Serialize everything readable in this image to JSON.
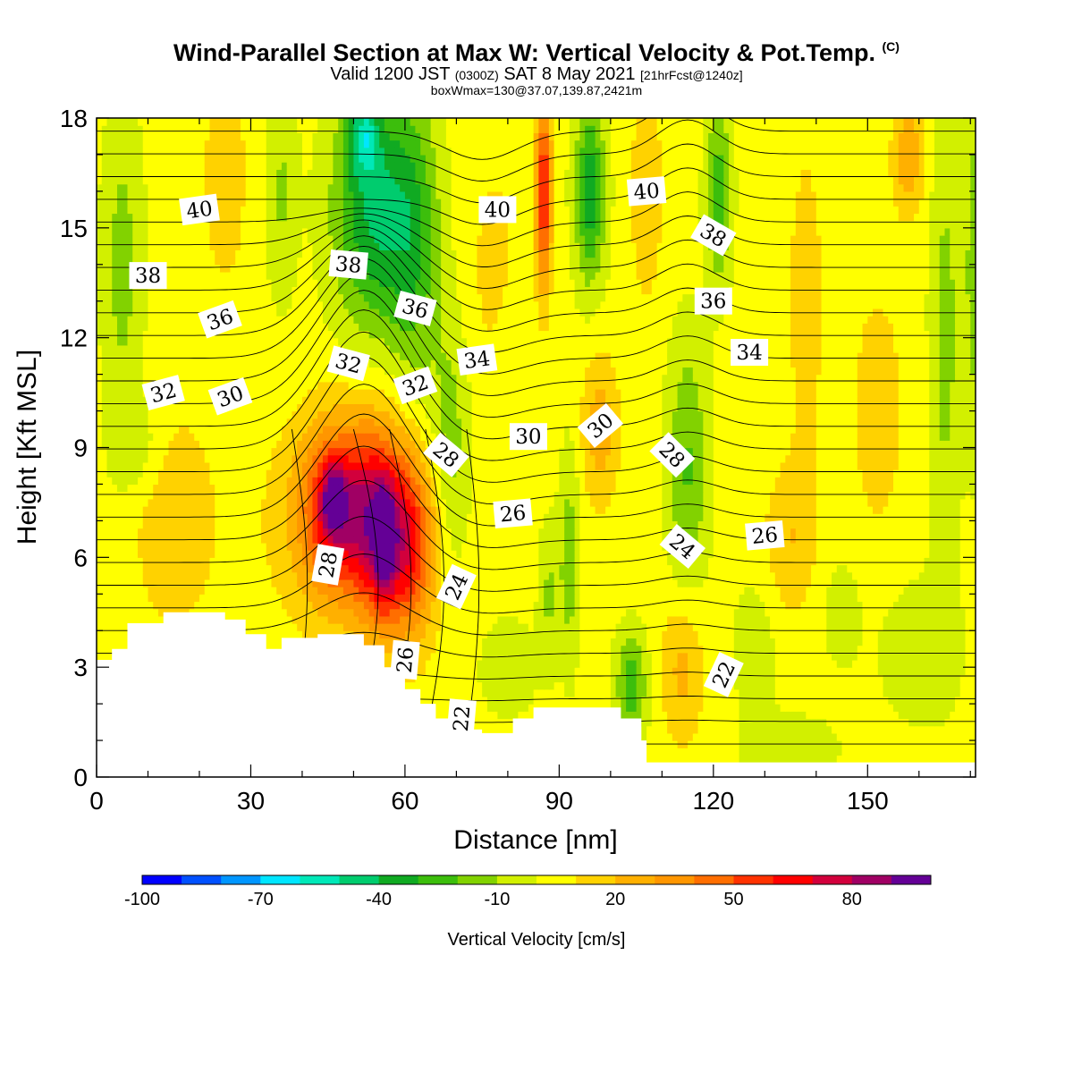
{
  "header": {
    "title": "Wind-Parallel Section at Max W: Vertical Velocity & Pot.Temp.",
    "title_mark": "(C)",
    "valid_prefix": "Valid 1200 JST",
    "valid_utc": "(0300Z)",
    "valid_date": "SAT 8 May 2021",
    "forecast": "[21hrFcst@1240z]",
    "box_info": "boxWmax=130@37.07,139.87,2421m"
  },
  "chart_data": {
    "type": "heatmap",
    "xlabel": "Distance [nm]",
    "ylabel": "Height [Kft MSL]",
    "xlim": [
      0,
      171
    ],
    "ylim": [
      0,
      18
    ],
    "x_ticks": [
      0,
      30,
      60,
      90,
      120,
      150
    ],
    "y_ticks": [
      0,
      3,
      6,
      9,
      12,
      15,
      18
    ],
    "colorbar": {
      "label": "Vertical Velocity [cm/s]",
      "tick_labels": [
        "-100",
        "-70",
        "-40",
        "-10",
        "20",
        "50",
        "80"
      ],
      "tick_values": [
        -100,
        -70,
        -40,
        -10,
        20,
        50,
        80
      ],
      "levels": [
        -100,
        -90,
        -80,
        -70,
        -60,
        -50,
        -40,
        -30,
        -20,
        -10,
        0,
        10,
        20,
        30,
        40,
        50,
        60,
        70,
        80,
        90,
        100
      ],
      "colors": [
        "#0000ff",
        "#0050ff",
        "#0096ff",
        "#00e6ff",
        "#00e8b8",
        "#00cc6e",
        "#10aa22",
        "#3cbe0c",
        "#82d200",
        "#d2f000",
        "#ffff00",
        "#ffd200",
        "#ffb000",
        "#ff9600",
        "#ff6e00",
        "#ff3200",
        "#ff0000",
        "#d2003c",
        "#a00064",
        "#640096"
      ]
    },
    "terrain_kft": [
      [
        0,
        3.2
      ],
      [
        3,
        3.5
      ],
      [
        6,
        4.2
      ],
      [
        13,
        4.5
      ],
      [
        25,
        4.3
      ],
      [
        29,
        3.9
      ],
      [
        33,
        3.5
      ],
      [
        36,
        3.8
      ],
      [
        43,
        3.9
      ],
      [
        52,
        3.6
      ],
      [
        56,
        3.0
      ],
      [
        60,
        2.4
      ],
      [
        63,
        2.0
      ],
      [
        66,
        1.6
      ],
      [
        70,
        1.3
      ],
      [
        75,
        1.2
      ],
      [
        81,
        1.6
      ],
      [
        85,
        1.9
      ],
      [
        98,
        1.9
      ],
      [
        102,
        1.6
      ],
      [
        106,
        1.0
      ],
      [
        107,
        0.4
      ],
      [
        171,
        0.4
      ]
    ],
    "vertical_velocity_cells": [
      {
        "x": 47,
        "y": 7.3,
        "sx": 7,
        "sy": 2.2,
        "w": 55
      },
      {
        "x": 55,
        "y": 6.8,
        "sx": 5,
        "sy": 2.6,
        "w": 50
      },
      {
        "x": 61,
        "y": 6.3,
        "sx": 5,
        "sy": 2.4,
        "w": 45
      },
      {
        "x": 46,
        "y": 7.6,
        "sx": 2.5,
        "sy": 1.0,
        "w": 35
      },
      {
        "x": 56,
        "y": 6.4,
        "sx": 1.8,
        "sy": 1.4,
        "w": 40
      },
      {
        "x": 50,
        "y": 7.0,
        "sx": 16,
        "sy": 3.0,
        "w": 18
      },
      {
        "x": 15,
        "y": 7.0,
        "sx": 8,
        "sy": 3.0,
        "w": 14
      },
      {
        "x": 54,
        "y": 15.5,
        "sx": 8,
        "sy": 3.3,
        "w": -45
      },
      {
        "x": 52,
        "y": 17.5,
        "sx": 3,
        "sy": 1.0,
        "w": -35
      },
      {
        "x": 62,
        "y": 14.5,
        "sx": 5,
        "sy": 4.0,
        "w": -25
      },
      {
        "x": 69,
        "y": 9.0,
        "sx": 4,
        "sy": 3.5,
        "w": -20
      },
      {
        "x": 96,
        "y": 16.0,
        "sx": 3,
        "sy": 2.5,
        "w": -40
      },
      {
        "x": 87,
        "y": 16.0,
        "sx": 1.5,
        "sy": 2.5,
        "w": 60
      },
      {
        "x": 92,
        "y": 6.0,
        "sx": 2,
        "sy": 3.0,
        "w": -20
      },
      {
        "x": 98,
        "y": 9.5,
        "sx": 3.5,
        "sy": 2.0,
        "w": 22
      },
      {
        "x": 104,
        "y": 2.5,
        "sx": 3,
        "sy": 1.5,
        "w": -30
      },
      {
        "x": 115,
        "y": 8.5,
        "sx": 4,
        "sy": 3.5,
        "w": -25
      },
      {
        "x": 121,
        "y": 16.0,
        "sx": 2.5,
        "sy": 2.5,
        "w": -30
      },
      {
        "x": 114,
        "y": 3.0,
        "sx": 4,
        "sy": 2.0,
        "w": 20
      },
      {
        "x": 135,
        "y": 6.5,
        "sx": 5,
        "sy": 2.0,
        "w": 15
      },
      {
        "x": 5,
        "y": 14.0,
        "sx": 4,
        "sy": 4.5,
        "w": -18
      },
      {
        "x": 8,
        "y": 9.0,
        "sx": 5,
        "sy": 1.3,
        "w": -12
      },
      {
        "x": 25,
        "y": 16.5,
        "sx": 4,
        "sy": 3.0,
        "w": 14
      },
      {
        "x": 36,
        "y": 16.0,
        "sx": 3,
        "sy": 3.0,
        "w": -15
      },
      {
        "x": 80,
        "y": 11.5,
        "sx": 5,
        "sy": 3.0,
        "w": -8
      },
      {
        "x": 107,
        "y": 16.0,
        "sx": 3,
        "sy": 3.0,
        "w": 15
      },
      {
        "x": 138,
        "y": 13.0,
        "sx": 4,
        "sy": 5.0,
        "w": 10
      },
      {
        "x": 152,
        "y": 10.0,
        "sx": 6,
        "sy": 4.0,
        "w": 10
      },
      {
        "x": 165,
        "y": 12.0,
        "sx": 3,
        "sy": 6.0,
        "w": -18
      },
      {
        "x": 172,
        "y": 14.0,
        "sx": 3,
        "sy": 5.0,
        "w": -25
      },
      {
        "x": 158,
        "y": 17.0,
        "sx": 3,
        "sy": 1.5,
        "w": 25
      },
      {
        "x": 160,
        "y": 3.5,
        "sx": 8,
        "sy": 2.0,
        "w": -12
      },
      {
        "x": 145,
        "y": 4.5,
        "sx": 4,
        "sy": 1.5,
        "w": -10
      },
      {
        "x": 128,
        "y": 3.5,
        "sx": 4,
        "sy": 1.8,
        "w": -12
      },
      {
        "x": 135,
        "y": 0.8,
        "sx": 10,
        "sy": 1.0,
        "w": -10
      },
      {
        "x": 80,
        "y": 3.0,
        "sx": 6,
        "sy": 1.5,
        "w": -10
      },
      {
        "x": 88,
        "y": 5.0,
        "sx": 2,
        "sy": 2.0,
        "w": -15
      },
      {
        "x": 78,
        "y": 13.0,
        "sx": 6,
        "sy": 4.0,
        "w": 12
      }
    ],
    "theta_labels": [
      {
        "text": "40",
        "x": 20,
        "y": 15.5,
        "rot": -8
      },
      {
        "text": "40",
        "x": 78,
        "y": 15.5,
        "rot": 0
      },
      {
        "text": "40",
        "x": 107,
        "y": 16.0,
        "rot": -5
      },
      {
        "text": "38",
        "x": 10,
        "y": 13.7,
        "rot": 0
      },
      {
        "text": "38",
        "x": 49,
        "y": 14.0,
        "rot": 5
      },
      {
        "text": "38",
        "x": 120,
        "y": 14.8,
        "rot": 30
      },
      {
        "text": "36",
        "x": 24,
        "y": 12.5,
        "rot": -20
      },
      {
        "text": "36",
        "x": 62,
        "y": 12.8,
        "rot": 15
      },
      {
        "text": "36",
        "x": 120,
        "y": 13.0,
        "rot": 0
      },
      {
        "text": "34",
        "x": 74,
        "y": 11.4,
        "rot": -8
      },
      {
        "text": "34",
        "x": 127,
        "y": 11.6,
        "rot": 0
      },
      {
        "text": "32",
        "x": 13,
        "y": 10.5,
        "rot": -15
      },
      {
        "text": "32",
        "x": 49,
        "y": 11.3,
        "rot": 15
      },
      {
        "text": "32",
        "x": 62,
        "y": 10.7,
        "rot": -20
      },
      {
        "text": "30",
        "x": 26,
        "y": 10.4,
        "rot": -20
      },
      {
        "text": "30",
        "x": 84,
        "y": 9.3,
        "rot": 0
      },
      {
        "text": "30",
        "x": 98,
        "y": 9.6,
        "rot": -40
      },
      {
        "text": "28",
        "x": 68,
        "y": 8.8,
        "rot": 40
      },
      {
        "text": "28",
        "x": 112,
        "y": 8.8,
        "rot": 45
      },
      {
        "text": "28",
        "x": 45,
        "y": 5.8,
        "rot": -80
      },
      {
        "text": "26",
        "x": 81,
        "y": 7.2,
        "rot": -5
      },
      {
        "text": "26",
        "x": 130,
        "y": 6.6,
        "rot": -5
      },
      {
        "text": "26",
        "x": 60,
        "y": 3.2,
        "rot": -85
      },
      {
        "text": "24",
        "x": 114,
        "y": 6.3,
        "rot": 40
      },
      {
        "text": "24",
        "x": 70,
        "y": 5.2,
        "rot": -65
      },
      {
        "text": "22",
        "x": 71,
        "y": 1.6,
        "rot": -85
      },
      {
        "text": "22",
        "x": 122,
        "y": 2.8,
        "rot": -65
      }
    ]
  }
}
